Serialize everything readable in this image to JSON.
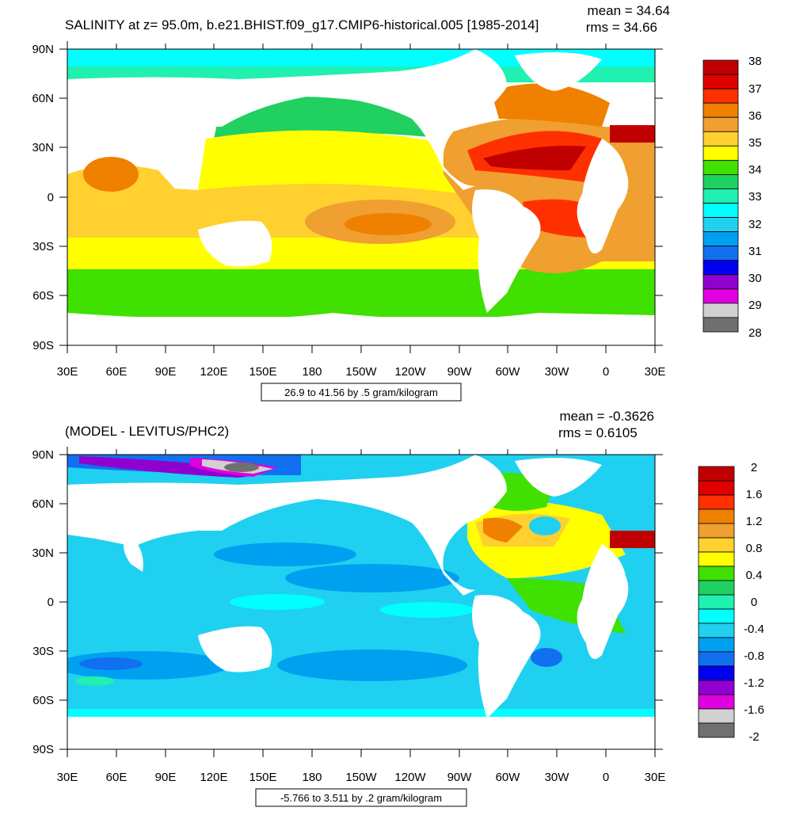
{
  "panel1": {
    "title": "SALINITY at z=  95.0m, b.e21.BHIST.f09_g17.CMIP6-historical.005 [1985-2014]",
    "mean": "mean = 34.64",
    "rms": "rms = 34.66",
    "info": "26.9 to 41.56 by .5 gram/kilogram",
    "colorbar_labels": [
      "38",
      "37",
      "36",
      "35",
      "34",
      "33",
      "32",
      "31",
      "30",
      "29",
      "28"
    ],
    "colors": [
      "#c00000",
      "#e00000",
      "#ff3000",
      "#f08000",
      "#f0a030",
      "#ffd030",
      "#ffff00",
      "#40e000",
      "#20d060",
      "#20f0b0",
      "#00ffff",
      "#20d0f0",
      "#00a0f0",
      "#1070f0",
      "#0000f0",
      "#9000d0",
      "#e000e0",
      "#d0d0d0",
      "#707070"
    ]
  },
  "panel2": {
    "title": "(MODEL - LEVITUS/PHC2)",
    "mean": "mean = -0.3626",
    "rms": "rms = 0.6105",
    "info": "-5.766 to 3.511 by .2 gram/kilogram",
    "colorbar_labels": [
      "2",
      "1.6",
      "1.2",
      "0.8",
      "0.4",
      "0",
      "-0.4",
      "-0.8",
      "-1.2",
      "-1.6",
      "-2"
    ],
    "colors": [
      "#c00000",
      "#e00000",
      "#ff3000",
      "#f08000",
      "#f0a030",
      "#ffd030",
      "#ffff00",
      "#40e000",
      "#20d060",
      "#20f0b0",
      "#00ffff",
      "#20d0f0",
      "#00a0f0",
      "#1070f0",
      "#0000f0",
      "#9000d0",
      "#e000e0",
      "#d0d0d0",
      "#707070"
    ]
  },
  "axes": {
    "lon_labels": [
      "30E",
      "60E",
      "90E",
      "120E",
      "150E",
      "180",
      "150W",
      "120W",
      "90W",
      "60W",
      "30W",
      "0",
      "30E"
    ],
    "lat_labels": [
      "90N",
      "60N",
      "30N",
      "0",
      "30S",
      "60S",
      "90S"
    ]
  },
  "map_data": {
    "type": "filled-contour map",
    "projection": "cylindrical equidistant",
    "lon_range": [
      "30E",
      "30E"
    ],
    "lat_range": [
      "90S",
      "90N"
    ]
  }
}
